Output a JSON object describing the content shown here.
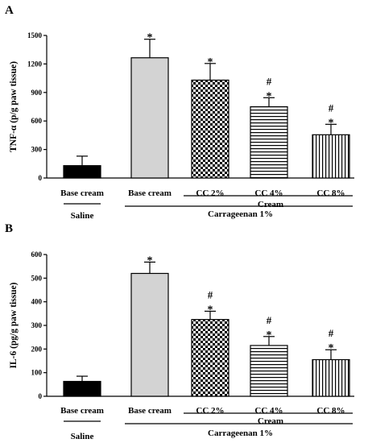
{
  "colors": {
    "black": "#000000",
    "light_gray": "#d3d3d3",
    "white": "#ffffff"
  },
  "chart_data": [
    {
      "panel": "A",
      "type": "bar",
      "ylabel": "TNF-α (p/g paw tissue)",
      "ylim": [
        0,
        1500
      ],
      "yticks": [
        0,
        300,
        600,
        900,
        1200,
        1500
      ],
      "categories": [
        "Base cream",
        "Base cream",
        "CC 2%",
        "CC 4%",
        "CC 8%"
      ],
      "values": [
        130,
        1265,
        1030,
        750,
        455
      ],
      "errors": [
        100,
        195,
        175,
        95,
        110
      ],
      "fills": [
        "solid-black",
        "solid-gray",
        "checker",
        "horizontal-lines",
        "vertical-lines"
      ],
      "annotations": [
        [],
        [
          "*"
        ],
        [
          "*"
        ],
        [
          "#",
          "*"
        ],
        [
          "#",
          "*"
        ]
      ],
      "groups": [
        {
          "label": "Saline",
          "from": 0,
          "to": 0
        },
        {
          "label": "Cream",
          "from": 2,
          "to": 4
        },
        {
          "label": "Carrageenan 1%",
          "from": 1,
          "to": 4
        }
      ]
    },
    {
      "panel": "B",
      "type": "bar",
      "ylabel": "IL-6 (pg/g paw tissue)",
      "ylim": [
        0,
        600
      ],
      "yticks": [
        0,
        100,
        200,
        300,
        400,
        500,
        600
      ],
      "categories": [
        "Base cream",
        "Base cream",
        "CC 2%",
        "CC 4%",
        "CC 8%"
      ],
      "values": [
        63,
        520,
        325,
        215,
        155
      ],
      "errors": [
        22,
        48,
        35,
        38,
        42
      ],
      "fills": [
        "solid-black",
        "solid-gray",
        "checker",
        "horizontal-lines",
        "vertical-lines"
      ],
      "annotations": [
        [],
        [
          "*"
        ],
        [
          "#",
          "*"
        ],
        [
          "#",
          "*"
        ],
        [
          "#",
          "*"
        ]
      ],
      "groups": [
        {
          "label": "Saline",
          "from": 0,
          "to": 0
        },
        {
          "label": "Cream",
          "from": 2,
          "to": 4
        },
        {
          "label": "Carrageenan 1%",
          "from": 1,
          "to": 4
        }
      ]
    }
  ]
}
